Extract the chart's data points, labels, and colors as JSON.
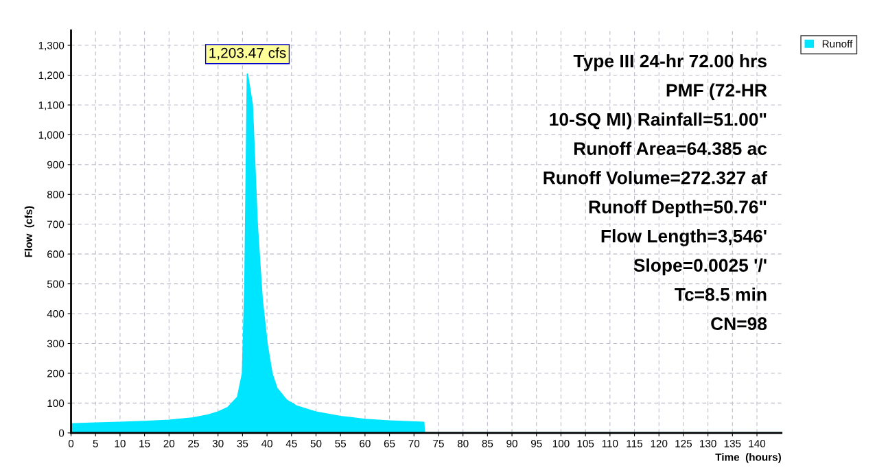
{
  "chart_data": {
    "type": "area",
    "xlabel": "Time  (hours)",
    "ylabel": "Flow  (cfs)",
    "series": [
      {
        "name": "Runoff",
        "color": "#00e5ff",
        "x": [
          0,
          5,
          10,
          15,
          20,
          25,
          28,
          30,
          32,
          34,
          35,
          35.5,
          36,
          37,
          38,
          39,
          40,
          41,
          42,
          44,
          46,
          50,
          55,
          60,
          65,
          72,
          72.1,
          100,
          145
        ],
        "values": [
          30,
          33,
          35,
          38,
          42,
          50,
          60,
          70,
          85,
          120,
          200,
          500,
          1203.47,
          1100,
          700,
          450,
          300,
          200,
          150,
          110,
          90,
          70,
          55,
          45,
          40,
          35,
          0,
          0,
          0
        ]
      }
    ],
    "xlim": [
      0,
      145
    ],
    "ylim": [
      0,
      1350
    ],
    "xticks": [
      0,
      5,
      10,
      15,
      20,
      25,
      30,
      35,
      40,
      45,
      50,
      55,
      60,
      65,
      70,
      75,
      80,
      85,
      90,
      95,
      100,
      105,
      110,
      115,
      120,
      125,
      130,
      135,
      140
    ],
    "yticks": [
      0,
      100,
      200,
      300,
      400,
      500,
      600,
      700,
      800,
      900,
      {
        "value": 1000,
        "label": "1,000"
      },
      {
        "value": 1100,
        "label": "1,100"
      },
      {
        "value": 1200,
        "label": "1,200"
      },
      {
        "value": 1300,
        "label": "1,300"
      }
    ],
    "grid": true,
    "legend": "top right",
    "annotations": [
      {
        "text": "1,203.47 cfs",
        "x": 36,
        "y": 1203.47
      },
      "Type III 24-hr 72.00 hrs",
      "PMF (72-HR",
      "10-SQ MI) Rainfall=51.00\"",
      "Runoff Area=64.385 ac",
      "Runoff Volume=272.327 af",
      "Runoff Depth=50.76\"",
      "Flow Length=3,546'",
      "Slope=0.0025 '/'",
      "Tc=8.5 min",
      "CN=98"
    ]
  }
}
